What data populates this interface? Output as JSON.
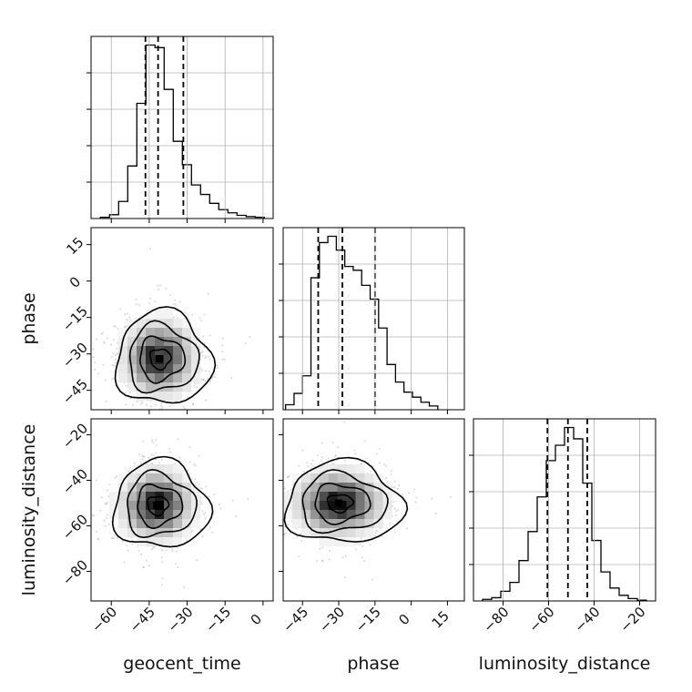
{
  "chart_data": [
    {
      "type": "histogram",
      "parameter": "geocent_time",
      "xlim": [
        -68,
        4
      ],
      "bin_edges": [
        -64.3,
        -60.7,
        -57.1,
        -53.5,
        -49.9,
        -46.3,
        -42.7,
        -39.1,
        -35.5,
        -31.9,
        -28.3,
        -24.7,
        -21.1,
        -17.5,
        -13.9,
        -10.3,
        -6.7,
        -3.1,
        0.5
      ],
      "counts": [
        0.2,
        0.6,
        2.7,
        8.3,
        18.2,
        27.4,
        27.0,
        20.4,
        12.2,
        8.5,
        5.3,
        3.8,
        2.4,
        1.4,
        0.9,
        0.5,
        0.3,
        0.2
      ],
      "quantiles": [
        -46.5,
        -41.5,
        -31.5
      ],
      "grid": true
    },
    {
      "type": "histogram",
      "parameter": "phase",
      "xlim": [
        -53,
        22
      ],
      "bin_edges": [
        -52,
        -48.5,
        -45,
        -41.5,
        -38,
        -34.5,
        -31,
        -27.5,
        -24,
        -20.5,
        -17,
        -13.5,
        -10,
        -6.5,
        -3,
        0.5,
        4,
        7.5,
        11
      ],
      "counts": [
        0.4,
        1.3,
        2.7,
        10.5,
        13.3,
        13.8,
        12.7,
        11.4,
        11.1,
        9.9,
        8.8,
        6.5,
        3.6,
        2.2,
        1.4,
        1.0,
        0.6,
        0.3
      ],
      "quantiles": [
        -38.5,
        -28.5,
        -15.0
      ],
      "grid": true
    },
    {
      "type": "histogram",
      "parameter": "luminosity_distance",
      "xlim": [
        -93,
        -13
      ],
      "bin_edges": [
        -89,
        -85,
        -81,
        -77,
        -73,
        -69,
        -65,
        -61,
        -57,
        -53,
        -49,
        -45,
        -41,
        -37,
        -33,
        -29,
        -25,
        -21,
        -17
      ],
      "counts": [
        0.2,
        0.4,
        1.2,
        2.3,
        5.0,
        8.6,
        12.9,
        17.4,
        19.3,
        21.5,
        20.1,
        14.6,
        7.5,
        3.6,
        1.6,
        0.7,
        0.3,
        0.1
      ],
      "quantiles": [
        -60.5,
        -51.5,
        -43.0
      ],
      "grid": true
    },
    {
      "type": "scatter-contour",
      "x_parameter": "geocent_time",
      "y_parameter": "phase",
      "xlim": [
        -68,
        4
      ],
      "ylim": [
        -53,
        22
      ],
      "center": [
        -41,
        -32
      ],
      "spread": [
        7,
        7.5
      ]
    },
    {
      "type": "scatter-contour",
      "x_parameter": "geocent_time",
      "y_parameter": "luminosity_distance",
      "xlim": [
        -68,
        4
      ],
      "ylim": [
        -93,
        -13
      ],
      "center": [
        -42,
        -51
      ],
      "spread": [
        7,
        7.5
      ]
    },
    {
      "type": "scatter-contour",
      "x_parameter": "phase",
      "y_parameter": "luminosity_distance",
      "xlim": [
        -53,
        22
      ],
      "ylim": [
        -93,
        -13
      ],
      "center": [
        -30,
        -50
      ],
      "spread": [
        9,
        7
      ]
    }
  ],
  "axes": {
    "geocent_time": {
      "label": "geocent_time",
      "ticks": [
        -60,
        -45,
        -30,
        -15,
        0
      ],
      "tick_labels": [
        "−60",
        "−45",
        "−30",
        "−15",
        "0"
      ]
    },
    "phase": {
      "label": "phase",
      "ticks": [
        -45,
        -30,
        -15,
        0,
        15
      ],
      "tick_labels": [
        "−45",
        "−30",
        "−15",
        "0",
        "15"
      ]
    },
    "luminosity_distance": {
      "label": "luminosity_distance",
      "ticks": [
        -80,
        -60,
        -40,
        -20
      ],
      "tick_labels": [
        "−80",
        "−60",
        "−40",
        "−20"
      ]
    }
  }
}
